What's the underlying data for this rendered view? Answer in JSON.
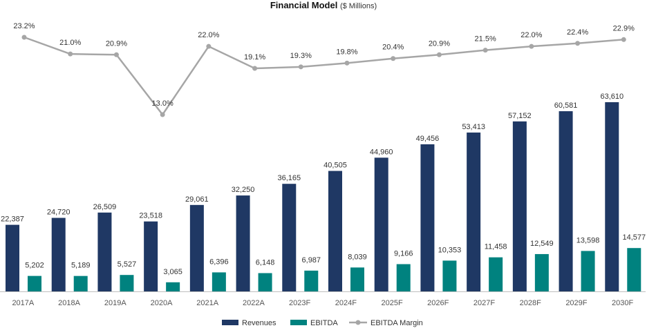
{
  "chart_data": {
    "type": "bar",
    "title": "Financial Model",
    "subtitle": "($ Millions)",
    "categories": [
      "2017A",
      "2018A",
      "2019A",
      "2020A",
      "2021A",
      "2022A",
      "2023F",
      "2024F",
      "2025F",
      "2026F",
      "2027F",
      "2028F",
      "2029F",
      "2030F"
    ],
    "series": [
      {
        "name": "Revenues",
        "type": "bar",
        "color": "#1f3864",
        "values": [
          22387,
          24720,
          26509,
          23518,
          29061,
          32250,
          36165,
          40505,
          44960,
          49456,
          53413,
          57152,
          60581,
          63610
        ],
        "labels": [
          "22,387",
          "24,720",
          "26,509",
          "23,518",
          "29,061",
          "32,250",
          "36,165",
          "40,505",
          "44,960",
          "49,456",
          "53,413",
          "57,152",
          "60,581",
          "63,610"
        ]
      },
      {
        "name": "EBITDA",
        "type": "bar",
        "color": "#00827f",
        "values": [
          5202,
          5189,
          5527,
          3065,
          6396,
          6148,
          6987,
          8039,
          9166,
          10353,
          11458,
          12549,
          13598,
          14577
        ],
        "labels": [
          "5,202",
          "5,189",
          "5,527",
          "3,065",
          "6,396",
          "6,148",
          "6,987",
          "8,039",
          "9,166",
          "10,353",
          "11,458",
          "12,549",
          "13,598",
          "14,577"
        ]
      },
      {
        "name": "EBITDA Margin",
        "type": "line",
        "color": "#a6a6a6",
        "values": [
          23.2,
          21.0,
          20.9,
          13.0,
          22.0,
          19.1,
          19.3,
          19.8,
          20.4,
          20.9,
          21.5,
          22.0,
          22.4,
          22.9
        ],
        "labels": [
          "23.2%",
          "21.0%",
          "20.9%",
          "13.0%",
          "22.0%",
          "19.1%",
          "19.3%",
          "19.8%",
          "20.4%",
          "20.9%",
          "21.5%",
          "22.0%",
          "22.4%",
          "22.9%"
        ]
      }
    ],
    "legend": {
      "position": "bottom"
    },
    "grid": false
  }
}
